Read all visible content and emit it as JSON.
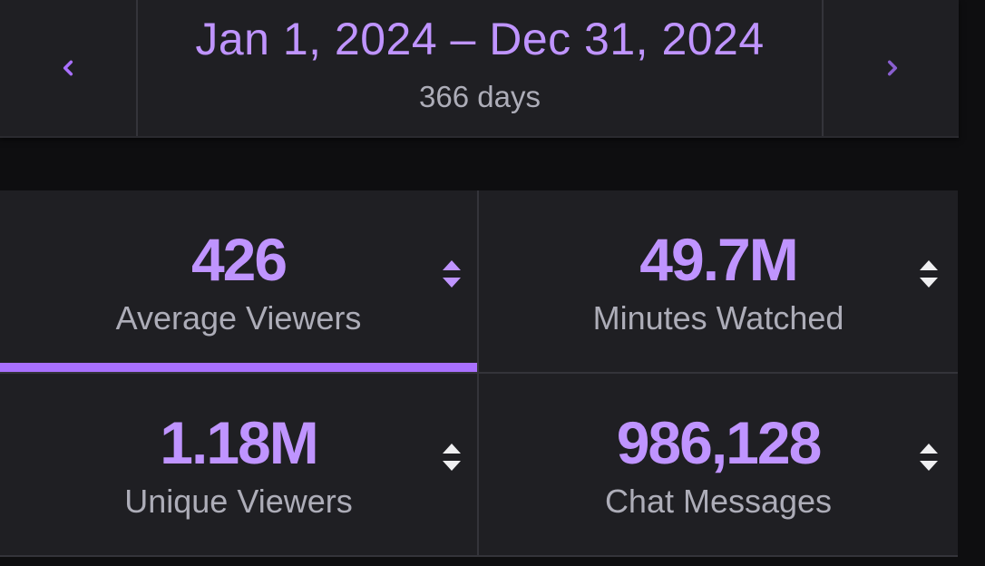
{
  "date_range": {
    "label": "Jan 1, 2024 – Dec 31, 2024",
    "days": "366 days",
    "prev_icon": "chevron-left-icon",
    "next_icon": "chevron-right-icon"
  },
  "stats": [
    {
      "value": "426",
      "label": "Average Viewers",
      "active": true
    },
    {
      "value": "49.7M",
      "label": "Minutes Watched",
      "active": false
    },
    {
      "value": "1.18M",
      "label": "Unique Viewers",
      "active": false
    },
    {
      "value": "986,128",
      "label": "Chat Messages",
      "active": false
    }
  ],
  "colors": {
    "accent": "#a970ff",
    "accent_text": "#bf94ff",
    "surface": "#1f1f23",
    "background": "#0e0e10",
    "muted_text": "#adadb8"
  },
  "sort_icon": "sort-up-down-icon"
}
